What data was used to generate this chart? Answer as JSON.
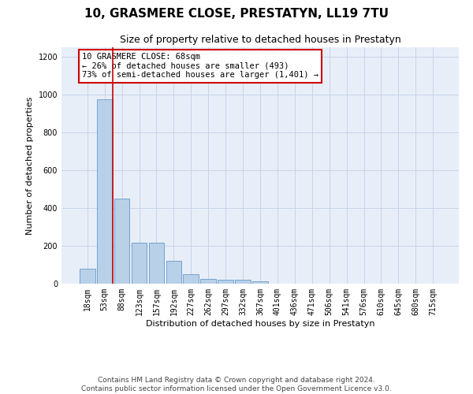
{
  "title": "10, GRASMERE CLOSE, PRESTATYN, LL19 7TU",
  "subtitle": "Size of property relative to detached houses in Prestatyn",
  "xlabel": "Distribution of detached houses by size in Prestatyn",
  "ylabel": "Number of detached properties",
  "categories": [
    "18sqm",
    "53sqm",
    "88sqm",
    "123sqm",
    "157sqm",
    "192sqm",
    "227sqm",
    "262sqm",
    "297sqm",
    "332sqm",
    "367sqm",
    "401sqm",
    "436sqm",
    "471sqm",
    "506sqm",
    "541sqm",
    "576sqm",
    "610sqm",
    "645sqm",
    "680sqm",
    "715sqm"
  ],
  "values": [
    80,
    975,
    450,
    215,
    215,
    120,
    48,
    25,
    22,
    20,
    12,
    0,
    0,
    0,
    0,
    0,
    0,
    0,
    0,
    0,
    0
  ],
  "bar_color": "#b8d0e8",
  "bar_edge_color": "#6699cc",
  "marker_bar_idx": 1,
  "marker_color": "#cc0000",
  "annotation_text": "10 GRASMERE CLOSE: 68sqm\n← 26% of detached houses are smaller (493)\n73% of semi-detached houses are larger (1,401) →",
  "annotation_box_color": "#ffffff",
  "annotation_box_edgecolor": "#cc0000",
  "ylim": [
    0,
    1250
  ],
  "yticks": [
    0,
    200,
    400,
    600,
    800,
    1000,
    1200
  ],
  "footer_text": "Contains HM Land Registry data © Crown copyright and database right 2024.\nContains public sector information licensed under the Open Government Licence v3.0.",
  "grid_color": "#c8d4e8",
  "bg_color": "#e8eef8",
  "title_fontsize": 11,
  "subtitle_fontsize": 9,
  "axis_label_fontsize": 8,
  "tick_fontsize": 7,
  "footer_fontsize": 6.5
}
